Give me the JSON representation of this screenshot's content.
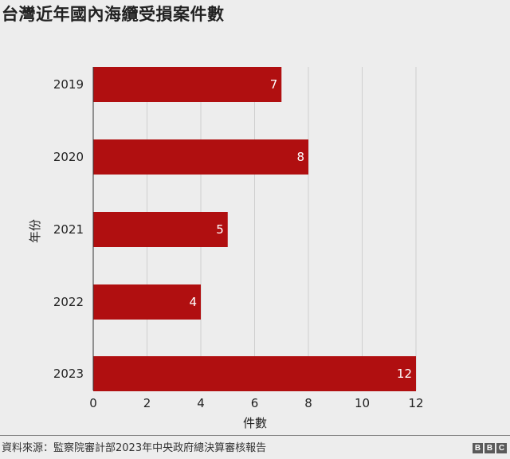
{
  "title": "台灣近年國內海纜受損案件數",
  "source": "資料來源：監察院審計部2023年中央政府總決算審核報告",
  "logo": [
    "B",
    "B",
    "C"
  ],
  "colors": {
    "bar": "#b00f10",
    "grid": "#cfcfcf",
    "axis": "#333333",
    "background": "#ededed"
  },
  "chart_data": {
    "type": "bar",
    "orientation": "horizontal",
    "categories": [
      "2019",
      "2020",
      "2021",
      "2022",
      "2023"
    ],
    "values": [
      7,
      8,
      5,
      4,
      12
    ],
    "data_labels": [
      "7",
      "8",
      "5",
      "4",
      "12"
    ],
    "xlabel": "件數",
    "ylabel": "年份",
    "xlim": [
      0,
      12
    ],
    "xticks": [
      0,
      2,
      4,
      6,
      8,
      10,
      12
    ],
    "grid": "vertical"
  }
}
